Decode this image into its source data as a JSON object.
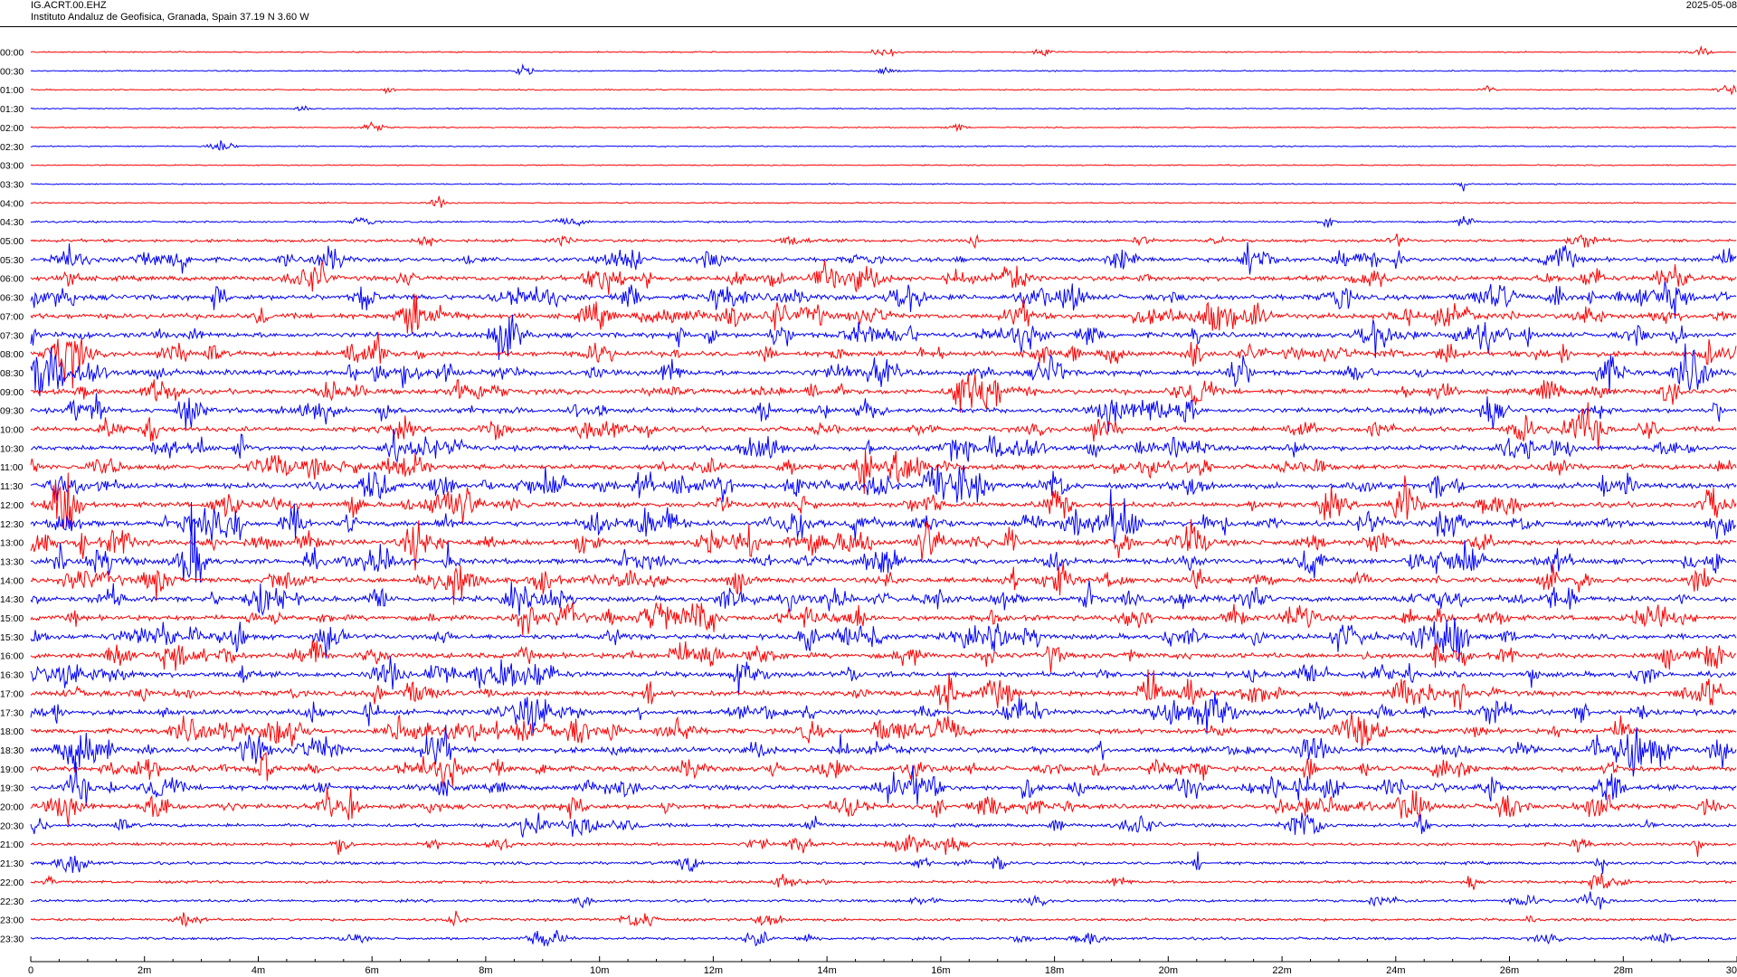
{
  "header": {
    "station": "IG.ACRT.00.EHZ",
    "institution": "Instituto Andaluz de Geofisica, Granada, Spain  37.19 N 3.60 W",
    "date": "2025-05-08"
  },
  "chart_data": {
    "type": "line",
    "title": "IG.ACRT.00.EHZ",
    "subtitle": "Instituto Andaluz de Geofisica, Granada, Spain  37.19 N 3.60 W",
    "xlabel": "",
    "ylabel": "",
    "xlim": [
      0,
      30
    ],
    "x_unit": "minutes",
    "x_ticks": [
      {
        "value": 0,
        "label": "0"
      },
      {
        "value": 2,
        "label": "2m"
      },
      {
        "value": 4,
        "label": "4m"
      },
      {
        "value": 6,
        "label": "6m"
      },
      {
        "value": 8,
        "label": "8m"
      },
      {
        "value": 10,
        "label": "10m"
      },
      {
        "value": 12,
        "label": "12m"
      },
      {
        "value": 14,
        "label": "14m"
      },
      {
        "value": 16,
        "label": "16m"
      },
      {
        "value": 18,
        "label": "18m"
      },
      {
        "value": 20,
        "label": "20m"
      },
      {
        "value": 22,
        "label": "22m"
      },
      {
        "value": 24,
        "label": "24m"
      },
      {
        "value": 26,
        "label": "26m"
      },
      {
        "value": 28,
        "label": "28m"
      },
      {
        "value": 30,
        "label": "30"
      }
    ],
    "colors": [
      "#ff0000",
      "#0000ff"
    ],
    "grid": false,
    "legend": "none",
    "traces": [
      {
        "label": "00:00",
        "activity": 0.1
      },
      {
        "label": "00:30",
        "activity": 0.1
      },
      {
        "label": "01:00",
        "activity": 0.08
      },
      {
        "label": "01:30",
        "activity": 0.07
      },
      {
        "label": "02:00",
        "activity": 0.07
      },
      {
        "label": "02:30",
        "activity": 0.08
      },
      {
        "label": "03:00",
        "activity": 0.08
      },
      {
        "label": "03:30",
        "activity": 0.09
      },
      {
        "label": "04:00",
        "activity": 0.1
      },
      {
        "label": "04:30",
        "activity": 0.22
      },
      {
        "label": "05:00",
        "activity": 0.45
      },
      {
        "label": "05:30",
        "activity": 0.75
      },
      {
        "label": "06:00",
        "activity": 0.85
      },
      {
        "label": "06:30",
        "activity": 0.95
      },
      {
        "label": "07:00",
        "activity": 0.9
      },
      {
        "label": "07:30",
        "activity": 0.9
      },
      {
        "label": "08:00",
        "activity": 0.9
      },
      {
        "label": "08:30",
        "activity": 0.95
      },
      {
        "label": "09:00",
        "activity": 0.9
      },
      {
        "label": "09:30",
        "activity": 0.85
      },
      {
        "label": "10:00",
        "activity": 0.85
      },
      {
        "label": "10:30",
        "activity": 0.9
      },
      {
        "label": "11:00",
        "activity": 0.9
      },
      {
        "label": "11:30",
        "activity": 0.95
      },
      {
        "label": "12:00",
        "activity": 0.9
      },
      {
        "label": "12:30",
        "activity": 0.95
      },
      {
        "label": "13:00",
        "activity": 0.95
      },
      {
        "label": "13:30",
        "activity": 0.95
      },
      {
        "label": "14:00",
        "activity": 0.9
      },
      {
        "label": "14:30",
        "activity": 0.9
      },
      {
        "label": "15:00",
        "activity": 0.9
      },
      {
        "label": "15:30",
        "activity": 0.9
      },
      {
        "label": "16:00",
        "activity": 0.9
      },
      {
        "label": "16:30",
        "activity": 0.9
      },
      {
        "label": "17:00",
        "activity": 0.9
      },
      {
        "label": "17:30",
        "activity": 0.9
      },
      {
        "label": "18:00",
        "activity": 0.9
      },
      {
        "label": "18:30",
        "activity": 0.95
      },
      {
        "label": "19:00",
        "activity": 0.9
      },
      {
        "label": "19:30",
        "activity": 0.9
      },
      {
        "label": "20:00",
        "activity": 0.85
      },
      {
        "label": "20:30",
        "activity": 0.55
      },
      {
        "label": "21:00",
        "activity": 0.45
      },
      {
        "label": "21:30",
        "activity": 0.45
      },
      {
        "label": "22:00",
        "activity": 0.4
      },
      {
        "label": "22:30",
        "activity": 0.4
      },
      {
        "label": "23:00",
        "activity": 0.4
      },
      {
        "label": "23:30",
        "activity": 0.4
      }
    ]
  }
}
